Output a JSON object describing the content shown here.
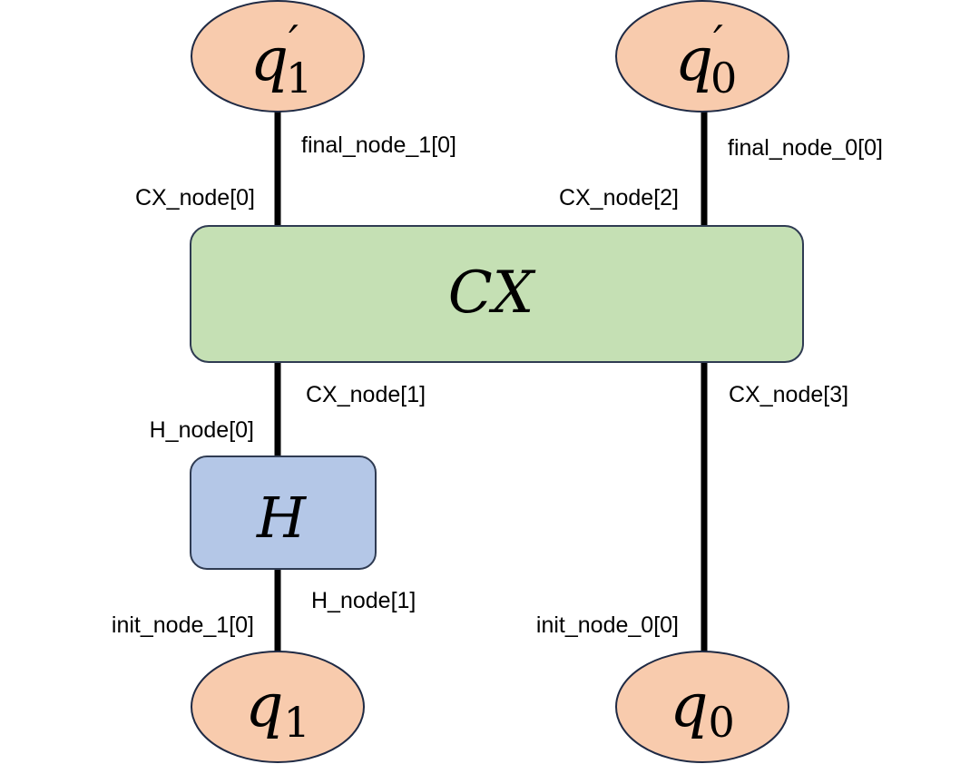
{
  "colors": {
    "qubit_fill": "#f8cbad",
    "qubit_stroke": "#1f2a44",
    "cx_fill": "#c5e0b4",
    "cx_stroke": "#2f3b52",
    "h_fill": "#b4c7e7",
    "h_stroke": "#2f3b52",
    "wire": "#000000"
  },
  "qubits": {
    "q1_out": {
      "symbol": "q",
      "prime": "′",
      "index": "1"
    },
    "q0_out": {
      "symbol": "q",
      "prime": "′",
      "index": "0"
    },
    "q1_in": {
      "symbol": "q",
      "index": "1"
    },
    "q0_in": {
      "symbol": "q",
      "index": "0"
    }
  },
  "gates": {
    "cx": {
      "label": "CX"
    },
    "h": {
      "label": "H"
    }
  },
  "ports": {
    "final_node_1": "final_node_1[0]",
    "final_node_0": "final_node_0[0]",
    "cx_node_0": "CX_node[0]",
    "cx_node_2": "CX_node[2]",
    "cx_node_1": "CX_node[1]",
    "cx_node_3": "CX_node[3]",
    "h_node_0": "H_node[0]",
    "h_node_1": "H_node[1]",
    "init_node_1": "init_node_1[0]",
    "init_node_0": "init_node_0[0]"
  }
}
